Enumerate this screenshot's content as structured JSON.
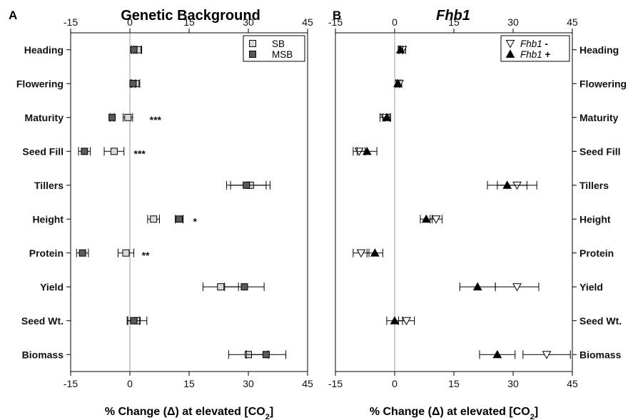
{
  "chart_data": [
    {
      "type": "scatter",
      "panel": "A",
      "title": "Genetic Background",
      "xlabel_text": "% Change (Δ) at elevated [CO",
      "xlabel_sub": "2",
      "xlabel_close": "]",
      "xlim": [
        -15,
        45
      ],
      "xticks": [
        -15,
        0,
        15,
        30,
        45
      ],
      "categories": [
        "Heading",
        "Flowering",
        "Maturity",
        "Seed Fill",
        "Tillers",
        "Height",
        "Protein",
        "Yield",
        "Seed Wt.",
        "Biomass"
      ],
      "legend": {
        "position": "top-right"
      },
      "series": [
        {
          "name": "SB",
          "marker": "square",
          "color": "#d9d9d9",
          "values": [
            2.0,
            1.5,
            -0.5,
            -4.0,
            30.5,
            6.0,
            -1.0,
            23.0,
            1.8,
            30.0
          ],
          "errors": [
            1.0,
            1.0,
            1.2,
            2.5,
            5.0,
            1.5,
            2.0,
            4.5,
            2.5,
            5.0
          ]
        },
        {
          "name": "MSB",
          "marker": "square",
          "color": "#5a5a5a",
          "values": [
            1.0,
            0.8,
            -4.5,
            -11.5,
            29.5,
            12.5,
            -12.0,
            29.0,
            1.0,
            34.5
          ],
          "errors": [
            0.6,
            0.6,
            0.5,
            1.5,
            5.0,
            1.0,
            1.5,
            5.0,
            1.5,
            5.0
          ]
        }
      ],
      "annotations": [
        {
          "category": "Maturity",
          "x": 5,
          "text": "***"
        },
        {
          "category": "Seed Fill",
          "x": 1,
          "text": "***"
        },
        {
          "category": "Height",
          "x": 16,
          "text": "*"
        },
        {
          "category": "Protein",
          "x": 3,
          "text": "**"
        }
      ]
    },
    {
      "type": "scatter",
      "panel": "B",
      "title": "Fhb1",
      "xlabel_text": "% Change (Δ) at elevated [CO",
      "xlabel_sub": "2",
      "xlabel_close": "]",
      "xlim": [
        -15,
        45
      ],
      "xticks": [
        -15,
        0,
        15,
        30,
        45
      ],
      "categories": [
        "Heading",
        "Flowering",
        "Maturity",
        "Seed Fill",
        "Tillers",
        "Height",
        "Protein",
        "Yield",
        "Seed Wt.",
        "Biomass"
      ],
      "legend": {
        "position": "top-right"
      },
      "series": [
        {
          "name": "Fhb1",
          "name_suffix": " -",
          "marker": "triangle-down-open",
          "color": "#ffffff",
          "values": [
            2.0,
            1.2,
            -2.5,
            -9.0,
            31.0,
            10.5,
            -8.5,
            31.0,
            3.0,
            38.5
          ],
          "errors": [
            0.8,
            0.6,
            1.2,
            1.5,
            5.0,
            1.5,
            2.0,
            5.5,
            2.0,
            6.0
          ]
        },
        {
          "name": "Fhb1",
          "name_suffix": " +",
          "marker": "triangle-up-filled",
          "color": "#000000",
          "values": [
            1.5,
            0.8,
            -2.0,
            -7.0,
            28.5,
            8.0,
            -5.0,
            21.0,
            0.0,
            26.0
          ],
          "errors": [
            0.6,
            0.5,
            1.0,
            2.5,
            5.0,
            1.5,
            2.0,
            4.5,
            2.0,
            4.5
          ]
        }
      ]
    }
  ]
}
